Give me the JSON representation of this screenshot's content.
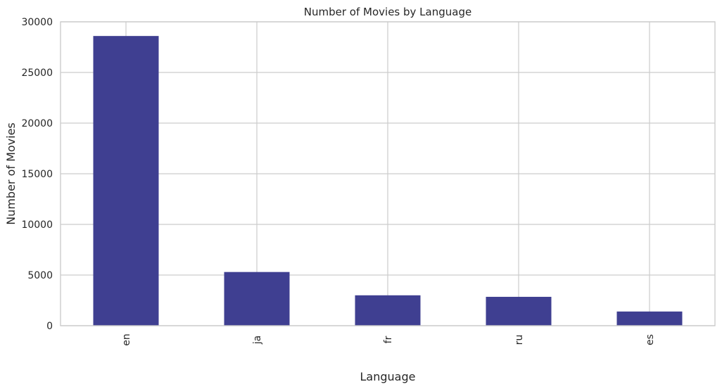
{
  "chart_data": {
    "type": "bar",
    "title": "Number of Movies by Language",
    "xlabel": "Language",
    "ylabel": "Number of Movies",
    "categories": [
      "en",
      "ja",
      "fr",
      "ru",
      "es"
    ],
    "values": [
      28600,
      5300,
      3000,
      2850,
      1400
    ],
    "ylim": [
      0,
      30000
    ],
    "yticks": [
      "0",
      "5000",
      "10000",
      "15000",
      "20000",
      "25000",
      "30000"
    ],
    "bar_color": "#3f3f91",
    "grid": true,
    "legend": "none"
  }
}
